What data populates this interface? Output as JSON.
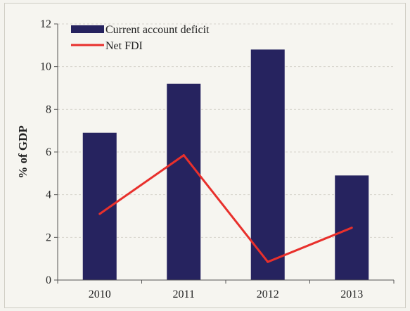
{
  "chart_data": {
    "type": "bar",
    "categories": [
      "2010",
      "2011",
      "2012",
      "2013"
    ],
    "series": [
      {
        "name": "Current account deficit",
        "kind": "bar",
        "values": [
          6.9,
          9.2,
          10.8,
          4.9
        ],
        "color": "#26235f"
      },
      {
        "name": "Net FDI",
        "kind": "line",
        "values": [
          3.1,
          5.85,
          0.85,
          2.45
        ],
        "color": "#e8302c"
      }
    ],
    "title": "",
    "xlabel": "",
    "ylabel": "% of GDP",
    "ylim": [
      0,
      12
    ],
    "yticks": [
      "0",
      "2",
      "4",
      "6",
      "8",
      "10",
      "12"
    ],
    "grid": true,
    "legend": "top-left"
  }
}
